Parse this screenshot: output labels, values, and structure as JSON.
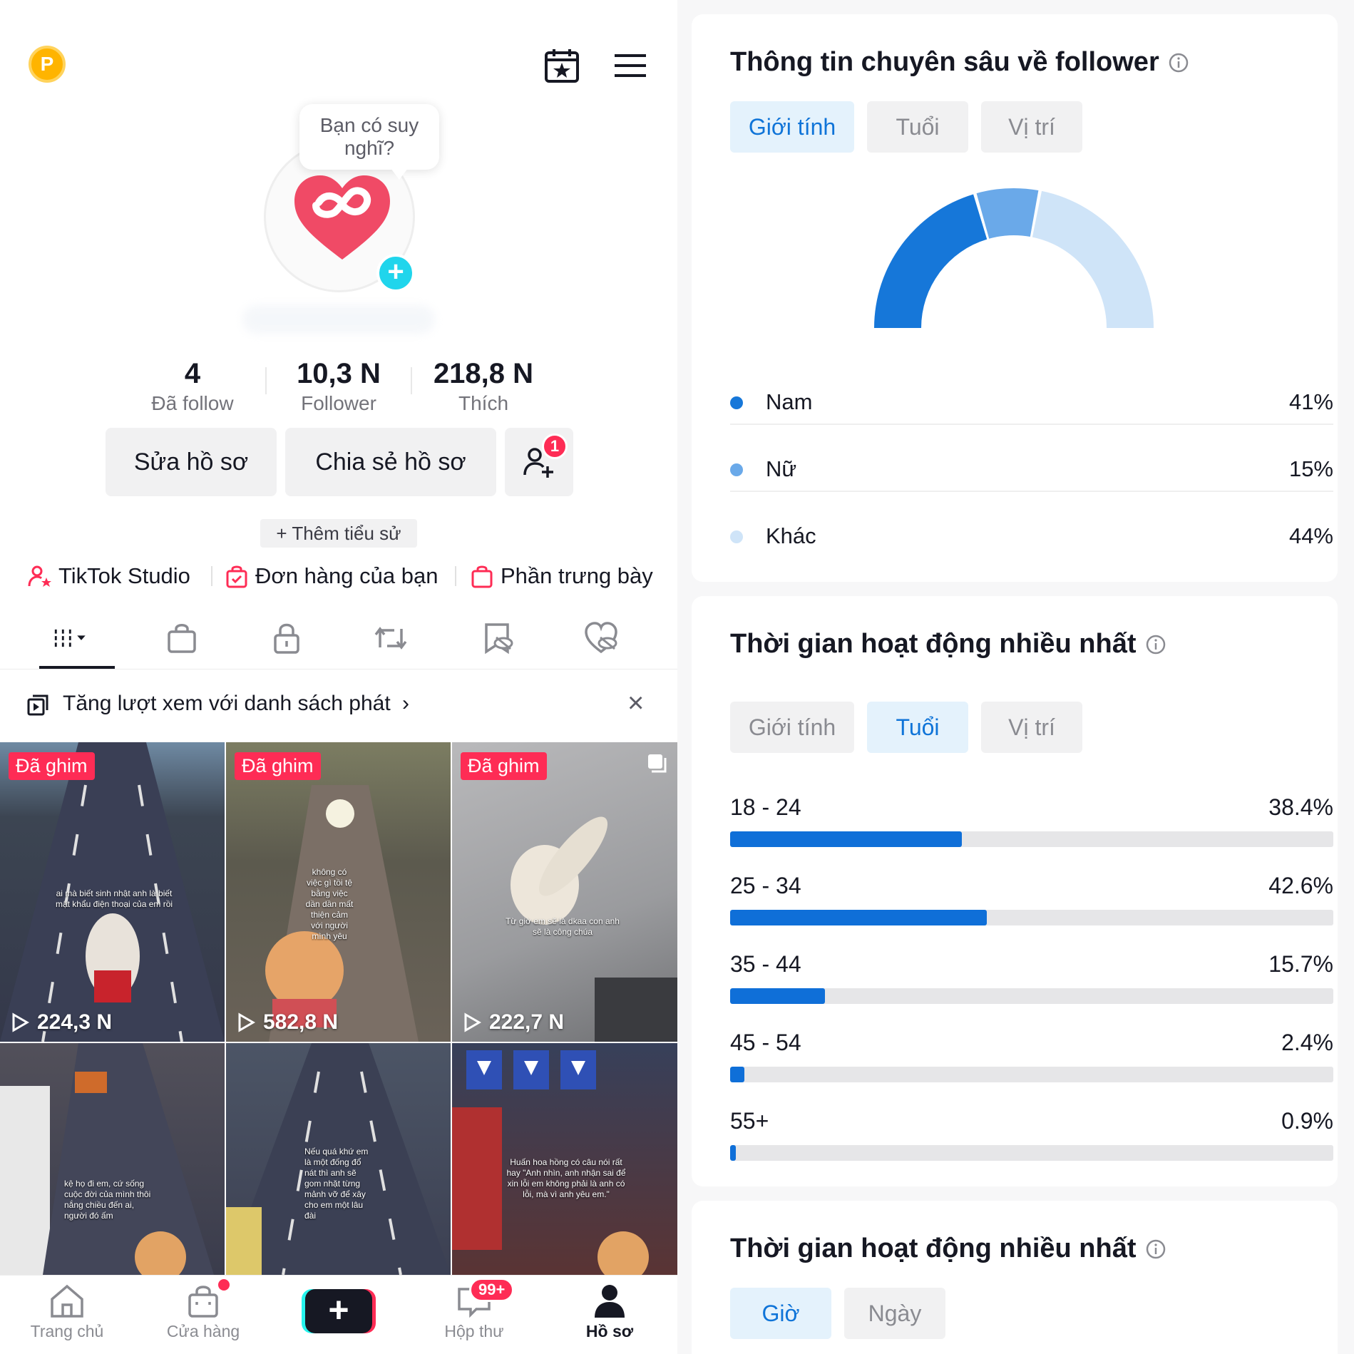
{
  "profile": {
    "coin_letter": "P",
    "bubble_text": "Bạn có suy nghĩ?",
    "stats": [
      {
        "value": "4",
        "label": "Đã follow"
      },
      {
        "value": "10,3 N",
        "label": "Follower"
      },
      {
        "value": "218,8 N",
        "label": "Thích"
      }
    ],
    "edit_button": "Sửa hồ sơ",
    "share_button": "Chia sẻ hồ sơ",
    "friend_badge": "1",
    "bio_button": "+ Thêm tiểu sử",
    "links": [
      "TikTok Studio",
      "Đơn hàng của bạn",
      "Phần trưng bày"
    ],
    "promo_text": "Tăng lượt xem với danh sách phát",
    "promo_chevron": "›",
    "promo_close": "×"
  },
  "videos": [
    {
      "pinned": "Đã ghim",
      "views": "224,3 N",
      "caption": "ai mà biết sinh nhật anh là biết mật khẩu điện thoại của em rồi"
    },
    {
      "pinned": "Đã ghim",
      "views": "582,8 N",
      "caption": "không có việc gì tồi tệ bằng việc dần dần mất thiện cảm với người mình yêu"
    },
    {
      "pinned": "Đã ghim",
      "views": "222,7 N",
      "caption": "Từ giờ em sẽ là dkaa con anh sẽ là công chúa"
    },
    {
      "pinned": "",
      "views": "",
      "caption": "kệ họ đi em, cứ sống cuộc đời của mình thôi nắng chiều đến ai, người đó ấm"
    },
    {
      "pinned": "",
      "views": "",
      "caption": "Nếu quá khứ em là một đống đổ nát thì anh sẽ gom nhặt từng mảnh vỡ để xây cho em một lâu đài"
    },
    {
      "pinned": "",
      "views": "",
      "caption": "Huấn hoa hồng có câu nói rất hay \"Anh nhìn, anh nhận sai để xin lỗi em không phải là anh có lỗi, mà vì anh yêu em.\""
    }
  ],
  "bottom_nav": {
    "home": "Trang chủ",
    "shop": "Cửa hàng",
    "create": "+",
    "inbox": "Hộp thư",
    "inbox_badge": "99+",
    "profile": "Hồ sơ"
  },
  "insights": {
    "card1_title": "Thông tin chuyên sâu về follower",
    "tabs": [
      "Giới tính",
      "Tuổi",
      "Vị trí"
    ],
    "gender": [
      {
        "name": "Nam",
        "value": "41%",
        "color": "#1677d9"
      },
      {
        "name": "Nữ",
        "value": "15%",
        "color": "#6aa9e9"
      },
      {
        "name": "Khác",
        "value": "44%",
        "color": "#cfe4f8"
      }
    ],
    "card2_title": "Thời gian hoạt động nhiều nhất",
    "age": [
      {
        "label": "18 - 24",
        "value": "38.4%"
      },
      {
        "label": "25 - 34",
        "value": "42.6%"
      },
      {
        "label": "35 - 44",
        "value": "15.7%"
      },
      {
        "label": "45 - 54",
        "value": "2.4%"
      },
      {
        "label": "55+",
        "value": "0.9%"
      }
    ],
    "card3_title": "Thời gian hoạt động nhiều nhất",
    "time_tabs": [
      "Giờ",
      "Ngày"
    ]
  },
  "chart_data": [
    {
      "type": "pie",
      "categories": [
        "Nam",
        "Nữ",
        "Khác"
      ],
      "values": [
        41,
        15,
        44
      ],
      "colors": [
        "#1677d9",
        "#6aa9e9",
        "#cfe4f8"
      ]
    },
    {
      "type": "bar",
      "categories": [
        "18 - 24",
        "25 - 34",
        "35 - 44",
        "45 - 54",
        "55+"
      ],
      "values": [
        38.4,
        42.6,
        15.7,
        2.4,
        0.9
      ],
      "ylim": [
        0,
        100
      ]
    }
  ]
}
